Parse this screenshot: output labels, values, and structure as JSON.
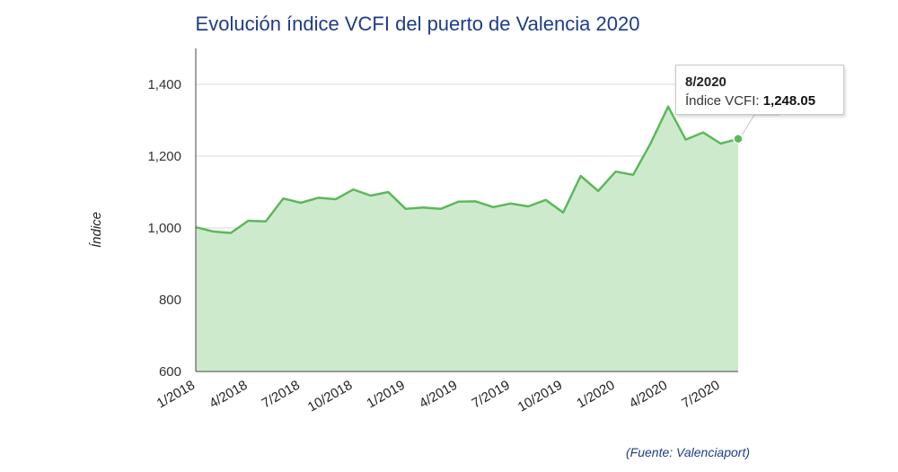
{
  "chart_data": {
    "type": "area",
    "title": "Evolución índice VCFI del puerto de Valencia 2020",
    "xlabel": "",
    "ylabel": "Índice",
    "ylim": [
      600,
      1400
    ],
    "y_ticks": [
      1400,
      1200,
      1000,
      800,
      600
    ],
    "y_tick_labels": [
      "1,400",
      "1,200",
      "1,000",
      "800",
      "600"
    ],
    "x_tick_labels": [
      "1/2018",
      "4/2018",
      "7/2018",
      "10/2018",
      "1/2019",
      "4/2019",
      "7/2019",
      "10/2019",
      "1/2020",
      "4/2020",
      "7/2020"
    ],
    "x_tick_indices": [
      0,
      3,
      6,
      9,
      12,
      15,
      18,
      21,
      24,
      27,
      30
    ],
    "grid": true,
    "legend": "none",
    "series": [
      {
        "values": [
          1002,
          990,
          986,
          1020,
          1018,
          1082,
          1070,
          1084,
          1080,
          1107,
          1090,
          1100,
          1053,
          1057,
          1053,
          1073,
          1074,
          1058,
          1068,
          1060,
          1078,
          1043,
          1145,
          1103,
          1157,
          1148,
          1236,
          1338,
          1246,
          1266,
          1235,
          1248.05
        ]
      }
    ],
    "colors": {
      "line": "#5cb85c",
      "fill": "#cdebcc",
      "grid": "#d9d9d9",
      "axis": "#444444"
    },
    "tooltip": {
      "date": "8/2020",
      "label": "Índice VCFI:",
      "value": "1,248.05"
    }
  },
  "source_note": "(Fuente: Valenciaport)"
}
